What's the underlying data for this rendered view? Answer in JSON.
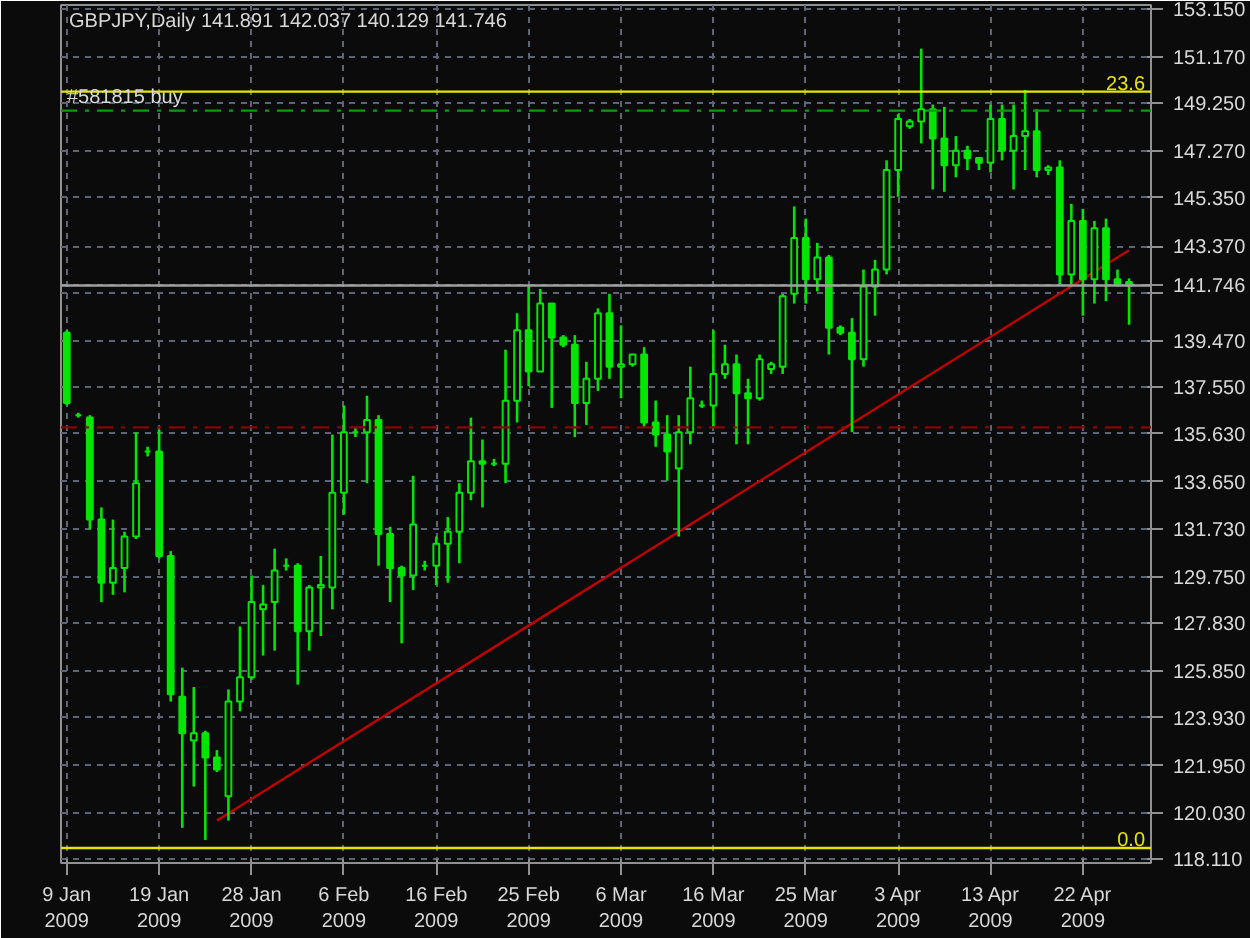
{
  "chart_data": {
    "type": "candlestick",
    "title": "GBPJPY,Daily  141.891 142.037 140.129 141.746",
    "color": "#00e600",
    "grid": true,
    "categories": [
      "9 Jan 2009",
      null,
      null,
      null,
      null,
      null,
      null,
      null,
      "19 Jan 2009",
      null,
      null,
      null,
      null,
      null,
      null,
      null,
      "28 Jan 2009",
      null,
      null,
      null,
      null,
      null,
      null,
      null,
      "6 Feb 2009",
      null,
      null,
      null,
      null,
      null,
      null,
      null,
      "16 Feb 2009",
      null,
      null,
      null,
      null,
      null,
      null,
      null,
      "25 Feb 2009",
      null,
      null,
      null,
      null,
      null,
      null,
      null,
      "6 Mar 2009",
      null,
      null,
      null,
      null,
      null,
      null,
      null,
      "16 Mar 2009",
      null,
      null,
      null,
      null,
      null,
      null,
      null,
      "25 Mar 2009",
      null,
      null,
      null,
      null,
      null,
      null,
      null,
      "3 Apr 2009",
      null,
      null,
      null,
      null,
      null,
      null,
      null,
      "13 Apr 2009",
      null,
      null,
      null,
      null,
      null,
      null,
      null,
      "22 Apr 2009",
      null,
      null,
      null,
      null
    ],
    "ohlc": [
      [
        139.8,
        139.9,
        136.8,
        136.9
      ],
      [
        136.4,
        136.5,
        136.3,
        136.4
      ],
      [
        136.3,
        136.4,
        131.7,
        132.1
      ],
      [
        132.1,
        132.6,
        128.7,
        129.5
      ],
      [
        129.5,
        132.1,
        129.0,
        130.1
      ],
      [
        130.1,
        131.6,
        129.1,
        131.4
      ],
      [
        131.4,
        135.7,
        131.3,
        133.6
      ],
      [
        134.9,
        135.1,
        134.7,
        134.9
      ],
      [
        134.9,
        135.8,
        130.5,
        130.6
      ],
      [
        130.6,
        130.8,
        124.6,
        124.9
      ],
      [
        124.8,
        126.0,
        119.4,
        123.3
      ],
      [
        123.0,
        125.2,
        121.1,
        123.3
      ],
      [
        123.3,
        123.4,
        118.9,
        122.3
      ],
      [
        122.3,
        122.6,
        121.7,
        121.8
      ],
      [
        120.7,
        125.1,
        119.7,
        124.6
      ],
      [
        124.6,
        127.7,
        124.2,
        125.6
      ],
      [
        125.6,
        129.8,
        125.5,
        128.7
      ],
      [
        128.4,
        129.4,
        126.5,
        128.6
      ],
      [
        128.7,
        130.9,
        126.7,
        130.0
      ],
      [
        130.2,
        130.5,
        130.0,
        130.2
      ],
      [
        130.2,
        130.3,
        125.3,
        127.5
      ],
      [
        127.5,
        129.4,
        126.7,
        129.3
      ],
      [
        129.3,
        130.6,
        127.3,
        129.4
      ],
      [
        129.3,
        135.6,
        128.4,
        133.2
      ],
      [
        133.2,
        136.8,
        132.3,
        135.7
      ],
      [
        135.7,
        135.9,
        135.5,
        135.7
      ],
      [
        135.7,
        137.2,
        133.6,
        136.2
      ],
      [
        136.2,
        136.4,
        130.2,
        131.5
      ],
      [
        131.5,
        131.8,
        128.7,
        130.1
      ],
      [
        130.1,
        130.2,
        127.0,
        129.8
      ],
      [
        129.8,
        133.9,
        129.2,
        131.9
      ],
      [
        130.2,
        130.4,
        130.0,
        130.2
      ],
      [
        130.2,
        131.4,
        129.4,
        131.1
      ],
      [
        131.1,
        132.2,
        129.5,
        131.6
      ],
      [
        131.6,
        133.6,
        130.3,
        133.2
      ],
      [
        133.2,
        136.3,
        132.9,
        134.5
      ],
      [
        134.5,
        135.4,
        132.6,
        134.4
      ],
      [
        134.4,
        134.6,
        134.3,
        134.4
      ],
      [
        134.4,
        139.1,
        133.6,
        137.0
      ],
      [
        137.0,
        140.6,
        136.1,
        139.9
      ],
      [
        139.9,
        141.7,
        137.6,
        138.2
      ],
      [
        138.2,
        141.6,
        138.2,
        141.0
      ],
      [
        141.0,
        141.0,
        136.7,
        139.6
      ],
      [
        139.6,
        139.7,
        139.2,
        139.3
      ],
      [
        139.3,
        139.7,
        135.5,
        136.9
      ],
      [
        136.9,
        138.6,
        136.0,
        137.9
      ],
      [
        137.9,
        140.8,
        137.4,
        140.6
      ],
      [
        140.6,
        141.4,
        137.9,
        138.4
      ],
      [
        138.4,
        140.1,
        137.1,
        138.5
      ],
      [
        138.5,
        138.9,
        138.4,
        138.9
      ],
      [
        138.9,
        139.2,
        135.9,
        136.1
      ],
      [
        136.1,
        137.0,
        135.1,
        135.6
      ],
      [
        135.6,
        136.4,
        133.7,
        134.9
      ],
      [
        134.2,
        136.4,
        131.4,
        135.7
      ],
      [
        135.7,
        138.4,
        135.2,
        137.1
      ],
      [
        136.8,
        137.0,
        136.7,
        136.8
      ],
      [
        136.8,
        139.9,
        135.9,
        138.1
      ],
      [
        138.1,
        139.3,
        137.9,
        138.5
      ],
      [
        138.5,
        138.9,
        135.2,
        137.3
      ],
      [
        137.3,
        137.9,
        135.2,
        137.1
      ],
      [
        137.1,
        138.9,
        137.0,
        138.7
      ],
      [
        138.3,
        138.6,
        138.1,
        138.5
      ],
      [
        138.4,
        141.4,
        138.1,
        141.3
      ],
      [
        141.4,
        145.0,
        141.0,
        143.7
      ],
      [
        143.7,
        144.5,
        141.0,
        142.0
      ],
      [
        142.0,
        143.5,
        141.5,
        142.9
      ],
      [
        142.9,
        143.0,
        138.9,
        140.0
      ],
      [
        140.0,
        140.1,
        139.7,
        139.8
      ],
      [
        139.8,
        140.4,
        135.7,
        138.7
      ],
      [
        138.7,
        142.4,
        138.4,
        141.7
      ],
      [
        141.7,
        142.8,
        140.5,
        142.4
      ],
      [
        142.4,
        146.9,
        142.2,
        146.5
      ],
      [
        146.5,
        148.8,
        145.4,
        148.6
      ],
      [
        148.3,
        148.6,
        148.2,
        148.5
      ],
      [
        148.5,
        151.5,
        147.6,
        149.0
      ],
      [
        149.0,
        149.2,
        145.7,
        147.8
      ],
      [
        147.8,
        149.1,
        145.6,
        146.7
      ],
      [
        146.7,
        147.9,
        146.2,
        147.3
      ],
      [
        147.3,
        147.5,
        146.5,
        147.0
      ],
      [
        147.0,
        147.0,
        146.5,
        146.8
      ],
      [
        146.8,
        149.2,
        146.4,
        148.6
      ],
      [
        148.6,
        149.2,
        146.9,
        147.3
      ],
      [
        147.3,
        149.2,
        145.7,
        147.9
      ],
      [
        147.9,
        149.8,
        146.5,
        148.1
      ],
      [
        148.1,
        149.0,
        146.2,
        146.5
      ],
      [
        146.5,
        146.7,
        146.3,
        146.6
      ],
      [
        146.6,
        146.9,
        141.8,
        142.2
      ],
      [
        142.2,
        145.1,
        141.8,
        144.4
      ],
      [
        144.4,
        144.9,
        140.5,
        142.0
      ],
      [
        142.0,
        144.4,
        141.0,
        144.1
      ],
      [
        144.1,
        144.5,
        141.1,
        142.0
      ],
      [
        142.0,
        142.4,
        141.7,
        141.8
      ],
      [
        141.891,
        142.037,
        140.129,
        141.746
      ]
    ],
    "series": [
      {
        "type": "line",
        "color": "#c00000",
        "values": [
          null,
          null,
          null,
          null,
          null,
          null,
          null,
          null,
          null,
          null,
          null,
          null,
          null,
          119.7,
          null,
          null,
          null,
          null,
          null,
          null,
          null,
          null,
          null,
          null,
          null,
          null,
          null,
          null,
          null,
          null,
          null,
          null,
          null,
          null,
          null,
          null,
          null,
          null,
          null,
          null,
          null,
          null,
          null,
          null,
          null,
          null,
          null,
          null,
          null,
          null,
          null,
          null,
          null,
          null,
          null,
          null,
          null,
          null,
          null,
          null,
          null,
          null,
          null,
          null,
          null,
          null,
          null,
          null,
          null,
          null,
          null,
          null,
          null,
          null,
          null,
          null,
          null,
          null,
          null,
          null,
          null,
          null,
          null,
          null,
          null,
          null,
          null,
          null,
          null,
          null,
          null,
          null,
          143.2
        ]
      }
    ],
    "annotations": [
      {
        "text": "23.6",
        "y": 149.73
      },
      {
        "text": "0.0",
        "y": 118.57
      }
    ],
    "ylim": [
      117.95,
      153.3
    ],
    "yticks": [
      {
        "value": 118.11,
        "label": "118.110"
      },
      {
        "value": 120.03,
        "label": "120.030"
      },
      {
        "value": 121.95,
        "label": "121.950"
      },
      {
        "value": 123.93,
        "label": "123.930"
      },
      {
        "value": 125.85,
        "label": "125.850"
      },
      {
        "value": 127.83,
        "label": "127.830"
      },
      {
        "value": 129.75,
        "label": "129.750"
      },
      {
        "value": 131.73,
        "label": "131.730"
      },
      {
        "value": 133.65,
        "label": "133.650"
      },
      {
        "value": 135.63,
        "label": "135.630"
      },
      {
        "value": 137.55,
        "label": "137.550"
      },
      {
        "value": 139.47,
        "label": "139.470"
      },
      {
        "value": 141.45,
        "label": null
      },
      {
        "value": 141.746,
        "label": "141.746"
      },
      {
        "value": 143.37,
        "label": "143.370"
      },
      {
        "value": 145.35,
        "label": "145.350"
      },
      {
        "value": 147.27,
        "label": "147.270"
      },
      {
        "value": 149.25,
        "label": "149.250"
      },
      {
        "value": 151.17,
        "label": "151.170"
      },
      {
        "value": 153.15,
        "label": "153.150"
      }
    ],
    "ref_lines": [
      {
        "axis": "y",
        "value": 149.73,
        "color": "#e6e600",
        "line_style": "solid"
      },
      {
        "axis": "y",
        "value": 118.57,
        "color": "#e6e600",
        "line_style": "solid"
      },
      {
        "axis": "y",
        "value": 148.95,
        "label": "#581815 buy",
        "color": "#00a000",
        "line_style": "dashed"
      },
      {
        "axis": "y",
        "value": 135.9,
        "color": "#8b0000",
        "line_style": "dashed"
      },
      {
        "axis": "y",
        "value": 141.746,
        "color": "#a0a0a0",
        "line_style": "solid"
      }
    ]
  }
}
